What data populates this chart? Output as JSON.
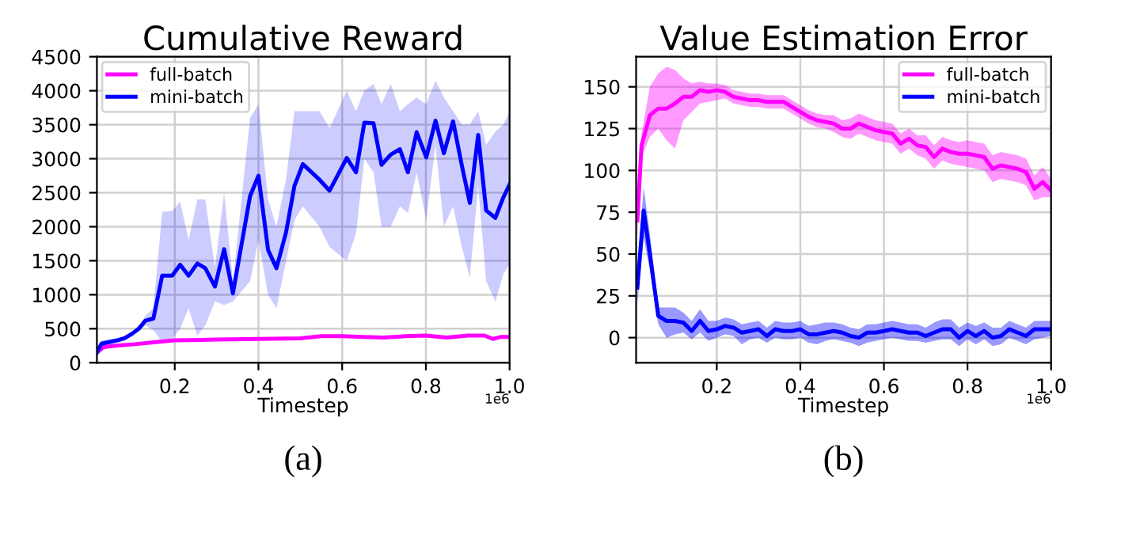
{
  "chart_data": [
    {
      "type": "line",
      "title": "Cumulative Reward",
      "xlabel": "Timestep",
      "annotations": [
        "1e6",
        "(a)"
      ],
      "xlim": [
        0.014,
        1.0
      ],
      "ylim": [
        0,
        4500
      ],
      "xticks": [
        0.2,
        0.4,
        0.6,
        0.8,
        {
          "value": 1,
          "label": "1.0"
        }
      ],
      "yticks": [
        0,
        500,
        1000,
        1500,
        2000,
        2500,
        3000,
        3500,
        4000,
        4500
      ],
      "grid": true,
      "legend": "top left",
      "series": [
        {
          "name": "full-batch",
          "color": "#ff00ff",
          "x": [
            0.014,
            0.03,
            0.06,
            0.1,
            0.15,
            0.2,
            0.3,
            0.4,
            0.5,
            0.55,
            0.6,
            0.65,
            0.7,
            0.75,
            0.8,
            0.85,
            0.9,
            0.94,
            0.96,
            0.98,
            1.0
          ],
          "values": [
            150,
            230,
            250,
            270,
            300,
            330,
            340,
            350,
            360,
            390,
            390,
            380,
            370,
            390,
            400,
            370,
            400,
            400,
            350,
            380,
            380
          ],
          "lower": [
            110,
            200,
            230,
            250,
            280,
            315,
            325,
            335,
            345,
            375,
            375,
            365,
            355,
            375,
            385,
            355,
            385,
            385,
            335,
            365,
            360
          ],
          "upper": [
            190,
            260,
            270,
            290,
            320,
            345,
            355,
            365,
            375,
            405,
            405,
            395,
            385,
            405,
            415,
            385,
            415,
            415,
            365,
            395,
            400
          ]
        },
        {
          "name": "mini-batch",
          "color": "#0000ff",
          "x": [
            0.014,
            0.025,
            0.063,
            0.08,
            0.099,
            0.114,
            0.13,
            0.149,
            0.17,
            0.194,
            0.213,
            0.233,
            0.254,
            0.273,
            0.296,
            0.318,
            0.339,
            0.38,
            0.4,
            0.423,
            0.443,
            0.466,
            0.486,
            0.506,
            0.546,
            0.57,
            0.611,
            0.633,
            0.653,
            0.675,
            0.694,
            0.716,
            0.738,
            0.757,
            0.778,
            0.801,
            0.823,
            0.843,
            0.865,
            0.886,
            0.905,
            0.925,
            0.944,
            0.966,
            0.985,
            1.0
          ],
          "values": [
            150,
            280,
            330,
            360,
            430,
            500,
            620,
            650,
            1280,
            1280,
            1440,
            1280,
            1460,
            1390,
            1120,
            1670,
            1020,
            2450,
            2750,
            1660,
            1390,
            1920,
            2600,
            2920,
            2690,
            2530,
            3010,
            2800,
            3530,
            3520,
            2910,
            3060,
            3140,
            2800,
            3390,
            3020,
            3560,
            3080,
            3550,
            2900,
            2350,
            3350,
            2240,
            2130,
            2430,
            2620
          ],
          "lower": [
            100,
            230,
            300,
            330,
            400,
            460,
            550,
            480,
            300,
            350,
            500,
            800,
            400,
            550,
            900,
            850,
            900,
            1200,
            1800,
            1000,
            800,
            1500,
            2100,
            2300,
            2000,
            1700,
            1500,
            1900,
            3000,
            2800,
            2000,
            2000,
            2300,
            2200,
            2800,
            2100,
            3200,
            2000,
            2300,
            1700,
            1250,
            2600,
            1200,
            900,
            1300,
            1450
          ],
          "upper": [
            200,
            330,
            360,
            390,
            460,
            540,
            690,
            800,
            2220,
            2230,
            2370,
            1800,
            2400,
            2400,
            1400,
            2500,
            1200,
            3600,
            3800,
            2400,
            2000,
            2700,
            3700,
            3700,
            3700,
            3450,
            4000,
            3700,
            4000,
            4100,
            3800,
            4100,
            3700,
            3800,
            3900,
            3800,
            4150,
            3900,
            3700,
            3500,
            3500,
            3700,
            3200,
            3400,
            3500,
            3700
          ]
        }
      ]
    },
    {
      "type": "line",
      "title": "Value Estimation Error",
      "xlabel": "Timestep",
      "annotations": [
        "1e6",
        "(b)"
      ],
      "xlim": [
        0.007,
        1.0
      ],
      "ylim": [
        -15,
        168
      ],
      "xticks": [
        0.2,
        0.4,
        0.6,
        0.8,
        {
          "value": 1,
          "label": "1.0"
        }
      ],
      "yticks": [
        0,
        25,
        50,
        75,
        100,
        125,
        150
      ],
      "grid": true,
      "legend": "top right",
      "series": [
        {
          "name": "full-batch",
          "color": "#ff00ff",
          "x": [
            0.01,
            0.02,
            0.04,
            0.06,
            0.08,
            0.1,
            0.12,
            0.14,
            0.16,
            0.18,
            0.2,
            0.22,
            0.24,
            0.26,
            0.28,
            0.3,
            0.32,
            0.34,
            0.36,
            0.38,
            0.4,
            0.42,
            0.44,
            0.46,
            0.48,
            0.5,
            0.52,
            0.54,
            0.56,
            0.58,
            0.6,
            0.62,
            0.64,
            0.66,
            0.68,
            0.7,
            0.72,
            0.74,
            0.76,
            0.78,
            0.8,
            0.82,
            0.84,
            0.86,
            0.88,
            0.9,
            0.92,
            0.94,
            0.96,
            0.98,
            1.0
          ],
          "values": [
            70,
            115,
            133,
            137,
            137,
            140,
            144,
            144,
            148,
            147,
            148,
            147,
            144,
            143,
            142,
            142,
            141,
            141,
            141,
            138,
            135,
            132,
            130,
            129,
            128,
            125,
            125,
            128,
            126,
            124,
            123,
            122,
            116,
            119,
            115,
            114,
            108,
            113,
            111,
            110,
            110,
            109,
            108,
            101,
            103,
            102,
            101,
            99,
            89,
            93,
            88
          ],
          "lower": [
            60,
            108,
            120,
            125,
            118,
            113,
            130,
            135,
            140,
            141,
            142,
            143,
            140,
            139,
            138,
            138,
            137,
            137,
            137,
            134,
            131,
            128,
            126,
            125,
            123,
            120,
            119,
            122,
            120,
            118,
            117,
            116,
            110,
            113,
            109,
            107,
            101,
            106,
            104,
            103,
            102,
            101,
            100,
            93,
            95,
            94,
            93,
            91,
            82,
            84,
            84
          ],
          "upper": [
            80,
            122,
            150,
            158,
            162,
            160,
            155,
            152,
            153,
            152,
            152,
            151,
            148,
            147,
            146,
            146,
            145,
            145,
            145,
            142,
            139,
            136,
            134,
            133,
            133,
            130,
            131,
            134,
            132,
            130,
            129,
            128,
            122,
            125,
            121,
            121,
            115,
            120,
            118,
            117,
            118,
            117,
            116,
            109,
            111,
            110,
            109,
            107,
            97,
            102,
            95
          ]
        },
        {
          "name": "mini-batch",
          "color": "#0000ff",
          "x": [
            0.01,
            0.025,
            0.04,
            0.06,
            0.08,
            0.1,
            0.12,
            0.14,
            0.16,
            0.18,
            0.2,
            0.22,
            0.24,
            0.26,
            0.28,
            0.3,
            0.32,
            0.34,
            0.36,
            0.38,
            0.4,
            0.42,
            0.44,
            0.46,
            0.48,
            0.5,
            0.52,
            0.54,
            0.56,
            0.58,
            0.6,
            0.62,
            0.64,
            0.66,
            0.68,
            0.7,
            0.72,
            0.74,
            0.76,
            0.78,
            0.8,
            0.82,
            0.84,
            0.86,
            0.88,
            0.9,
            0.92,
            0.94,
            0.96,
            0.98,
            1.0
          ],
          "values": [
            30,
            76,
            50,
            13,
            10,
            10,
            9,
            4,
            10,
            4,
            5,
            7,
            6,
            3,
            4,
            5,
            1,
            5,
            4,
            4,
            5,
            2,
            2,
            3,
            4,
            3,
            1,
            0,
            3,
            3,
            4,
            5,
            4,
            3,
            3,
            1,
            3,
            5,
            5,
            0,
            4,
            1,
            4,
            0,
            1,
            5,
            3,
            1,
            5,
            5,
            5
          ],
          "lower": [
            20,
            60,
            40,
            8,
            0,
            2,
            3,
            -1,
            3,
            -2,
            0,
            2,
            1,
            -4,
            -1,
            0,
            -3,
            0,
            -1,
            -1,
            0,
            -3,
            -4,
            -2,
            -1,
            -2,
            -3,
            -5,
            -3,
            -2,
            -1,
            0,
            -1,
            -2,
            -2,
            -3,
            -2,
            -1,
            -1,
            -5,
            -1,
            -4,
            -1,
            -5,
            -4,
            0,
            -2,
            -4,
            -1,
            0,
            1
          ],
          "upper": [
            40,
            90,
            62,
            18,
            18,
            18,
            15,
            10,
            17,
            10,
            10,
            12,
            11,
            8,
            9,
            10,
            6,
            10,
            9,
            9,
            10,
            7,
            8,
            9,
            9,
            8,
            6,
            5,
            8,
            8,
            9,
            10,
            9,
            8,
            8,
            6,
            9,
            11,
            11,
            6,
            9,
            7,
            9,
            6,
            6,
            10,
            8,
            6,
            10,
            10,
            10
          ]
        }
      ]
    }
  ]
}
